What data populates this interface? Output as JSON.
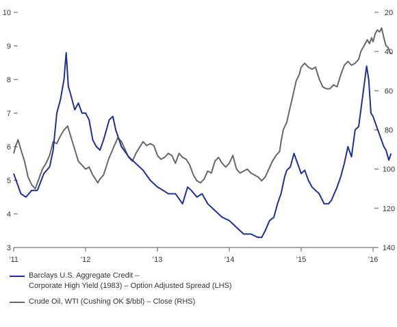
{
  "chart_data": {
    "type": "line",
    "left_axis": {
      "min": 3,
      "max": 10,
      "ticks": [
        "3",
        "4",
        "5",
        "6",
        "7",
        "8",
        "9",
        "10"
      ]
    },
    "right_axis": {
      "inverted": true,
      "min": 20,
      "max": 140,
      "ticks": [
        "20",
        "40",
        "60",
        "80",
        "100",
        "120",
        "140"
      ]
    },
    "x_axis": {
      "labels": [
        "’11",
        "’12",
        "’13",
        "’14",
        "’15",
        "’16"
      ]
    },
    "grid": false,
    "legend_position": "bottom-left",
    "series": [
      {
        "name": "Barclays U.S. Aggregate Credit – \nCorporate High Yield (1983) – Option Adjusted Spread (LHS)",
        "axis": "left",
        "color": "#1a2f9a",
        "points": [
          [
            2011.0,
            5.2
          ],
          [
            2011.05,
            4.9
          ],
          [
            2011.1,
            4.6
          ],
          [
            2011.17,
            4.5
          ],
          [
            2011.25,
            4.7
          ],
          [
            2011.33,
            4.7
          ],
          [
            2011.42,
            5.2
          ],
          [
            2011.5,
            5.4
          ],
          [
            2011.55,
            5.9
          ],
          [
            2011.6,
            7.0
          ],
          [
            2011.65,
            7.4
          ],
          [
            2011.7,
            8.0
          ],
          [
            2011.73,
            8.8
          ],
          [
            2011.76,
            7.8
          ],
          [
            2011.8,
            7.5
          ],
          [
            2011.85,
            7.1
          ],
          [
            2011.9,
            7.3
          ],
          [
            2011.95,
            7.0
          ],
          [
            2012.0,
            7.0
          ],
          [
            2012.05,
            6.8
          ],
          [
            2012.1,
            6.2
          ],
          [
            2012.15,
            6.0
          ],
          [
            2012.2,
            5.9
          ],
          [
            2012.25,
            6.2
          ],
          [
            2012.33,
            6.8
          ],
          [
            2012.38,
            6.9
          ],
          [
            2012.42,
            6.5
          ],
          [
            2012.5,
            6.0
          ],
          [
            2012.6,
            5.7
          ],
          [
            2012.7,
            5.5
          ],
          [
            2012.8,
            5.3
          ],
          [
            2012.9,
            5.0
          ],
          [
            2013.0,
            4.8
          ],
          [
            2013.08,
            4.7
          ],
          [
            2013.15,
            4.6
          ],
          [
            2013.25,
            4.6
          ],
          [
            2013.35,
            4.3
          ],
          [
            2013.42,
            4.8
          ],
          [
            2013.47,
            4.7
          ],
          [
            2013.55,
            4.5
          ],
          [
            2013.62,
            4.6
          ],
          [
            2013.7,
            4.3
          ],
          [
            2013.8,
            4.1
          ],
          [
            2013.9,
            3.9
          ],
          [
            2014.0,
            3.8
          ],
          [
            2014.1,
            3.6
          ],
          [
            2014.2,
            3.4
          ],
          [
            2014.3,
            3.4
          ],
          [
            2014.35,
            3.35
          ],
          [
            2014.4,
            3.3
          ],
          [
            2014.45,
            3.3
          ],
          [
            2014.5,
            3.5
          ],
          [
            2014.56,
            3.8
          ],
          [
            2014.62,
            3.9
          ],
          [
            2014.67,
            4.3
          ],
          [
            2014.72,
            4.6
          ],
          [
            2014.77,
            5.1
          ],
          [
            2014.8,
            5.3
          ],
          [
            2014.85,
            5.4
          ],
          [
            2014.9,
            5.8
          ],
          [
            2014.95,
            5.5
          ],
          [
            2015.0,
            5.2
          ],
          [
            2015.05,
            5.3
          ],
          [
            2015.1,
            5.0
          ],
          [
            2015.15,
            4.8
          ],
          [
            2015.2,
            4.7
          ],
          [
            2015.25,
            4.6
          ],
          [
            2015.32,
            4.3
          ],
          [
            2015.38,
            4.3
          ],
          [
            2015.42,
            4.4
          ],
          [
            2015.5,
            4.8
          ],
          [
            2015.55,
            5.1
          ],
          [
            2015.6,
            5.5
          ],
          [
            2015.65,
            6.0
          ],
          [
            2015.7,
            5.7
          ],
          [
            2015.75,
            6.5
          ],
          [
            2015.8,
            6.6
          ],
          [
            2015.85,
            7.4
          ],
          [
            2015.88,
            7.9
          ],
          [
            2015.91,
            8.4
          ],
          [
            2015.94,
            8.0
          ],
          [
            2015.97,
            7.0
          ],
          [
            2016.0,
            6.9
          ],
          [
            2016.05,
            6.6
          ],
          [
            2016.1,
            6.3
          ],
          [
            2016.15,
            6.0
          ],
          [
            2016.18,
            5.9
          ],
          [
            2016.22,
            5.6
          ],
          [
            2016.25,
            5.8
          ]
        ]
      },
      {
        "name": "Crude Oil, WTI (Cushing OK $/bbl) – Close (RHS)",
        "axis": "right",
        "color": "#666666",
        "points": [
          [
            2011.0,
            92
          ],
          [
            2011.03,
            88
          ],
          [
            2011.06,
            85
          ],
          [
            2011.1,
            90
          ],
          [
            2011.15,
            96
          ],
          [
            2011.2,
            104
          ],
          [
            2011.25,
            108
          ],
          [
            2011.3,
            110
          ],
          [
            2011.35,
            105
          ],
          [
            2011.4,
            100
          ],
          [
            2011.45,
            97
          ],
          [
            2011.5,
            93
          ],
          [
            2011.55,
            86
          ],
          [
            2011.6,
            87
          ],
          [
            2011.65,
            83
          ],
          [
            2011.7,
            80
          ],
          [
            2011.75,
            78
          ],
          [
            2011.8,
            84
          ],
          [
            2011.85,
            90
          ],
          [
            2011.9,
            96
          ],
          [
            2011.95,
            98
          ],
          [
            2012.0,
            100
          ],
          [
            2012.05,
            99
          ],
          [
            2012.1,
            103
          ],
          [
            2012.17,
            107
          ],
          [
            2012.2,
            105
          ],
          [
            2012.25,
            103
          ],
          [
            2012.32,
            95
          ],
          [
            2012.4,
            88
          ],
          [
            2012.45,
            84
          ],
          [
            2012.5,
            86
          ],
          [
            2012.55,
            90
          ],
          [
            2012.6,
            94
          ],
          [
            2012.65,
            96
          ],
          [
            2012.7,
            92
          ],
          [
            2012.75,
            89
          ],
          [
            2012.8,
            86
          ],
          [
            2012.85,
            88
          ],
          [
            2012.9,
            87
          ],
          [
            2012.95,
            88
          ],
          [
            2013.0,
            93
          ],
          [
            2013.05,
            95
          ],
          [
            2013.1,
            94
          ],
          [
            2013.15,
            92
          ],
          [
            2013.2,
            93
          ],
          [
            2013.25,
            97
          ],
          [
            2013.3,
            92
          ],
          [
            2013.35,
            94
          ],
          [
            2013.4,
            95
          ],
          [
            2013.45,
            98
          ],
          [
            2013.5,
            103
          ],
          [
            2013.55,
            106
          ],
          [
            2013.6,
            107
          ],
          [
            2013.65,
            105
          ],
          [
            2013.7,
            101
          ],
          [
            2013.75,
            102
          ],
          [
            2013.8,
            96
          ],
          [
            2013.85,
            94
          ],
          [
            2013.9,
            97
          ],
          [
            2013.95,
            99
          ],
          [
            2014.0,
            97
          ],
          [
            2014.05,
            93
          ],
          [
            2014.1,
            100
          ],
          [
            2014.15,
            102
          ],
          [
            2014.2,
            101
          ],
          [
            2014.25,
            100
          ],
          [
            2014.3,
            102
          ],
          [
            2014.35,
            103
          ],
          [
            2014.4,
            104
          ],
          [
            2014.45,
            106
          ],
          [
            2014.5,
            104
          ],
          [
            2014.55,
            100
          ],
          [
            2014.6,
            96
          ],
          [
            2014.65,
            93
          ],
          [
            2014.7,
            91
          ],
          [
            2014.72,
            86
          ],
          [
            2014.75,
            80
          ],
          [
            2014.8,
            76
          ],
          [
            2014.85,
            68
          ],
          [
            2014.9,
            60
          ],
          [
            2014.93,
            55
          ],
          [
            2014.97,
            52
          ],
          [
            2015.0,
            48
          ],
          [
            2015.05,
            46
          ],
          [
            2015.1,
            48
          ],
          [
            2015.15,
            49
          ],
          [
            2015.2,
            48
          ],
          [
            2015.25,
            54
          ],
          [
            2015.3,
            58
          ],
          [
            2015.35,
            59
          ],
          [
            2015.4,
            59
          ],
          [
            2015.45,
            57
          ],
          [
            2015.5,
            58
          ],
          [
            2015.55,
            52
          ],
          [
            2015.6,
            47
          ],
          [
            2015.65,
            45
          ],
          [
            2015.7,
            47
          ],
          [
            2015.75,
            46
          ],
          [
            2015.8,
            44
          ],
          [
            2015.83,
            40
          ],
          [
            2015.86,
            38
          ],
          [
            2015.89,
            36
          ],
          [
            2015.92,
            34
          ],
          [
            2015.95,
            36
          ],
          [
            2015.98,
            33
          ],
          [
            2016.0,
            35
          ],
          [
            2016.03,
            31
          ],
          [
            2016.06,
            29
          ],
          [
            2016.09,
            30
          ],
          [
            2016.12,
            28
          ],
          [
            2016.15,
            33
          ],
          [
            2016.18,
            37
          ],
          [
            2016.21,
            38
          ],
          [
            2016.24,
            41
          ],
          [
            2016.27,
            41
          ]
        ]
      }
    ]
  }
}
